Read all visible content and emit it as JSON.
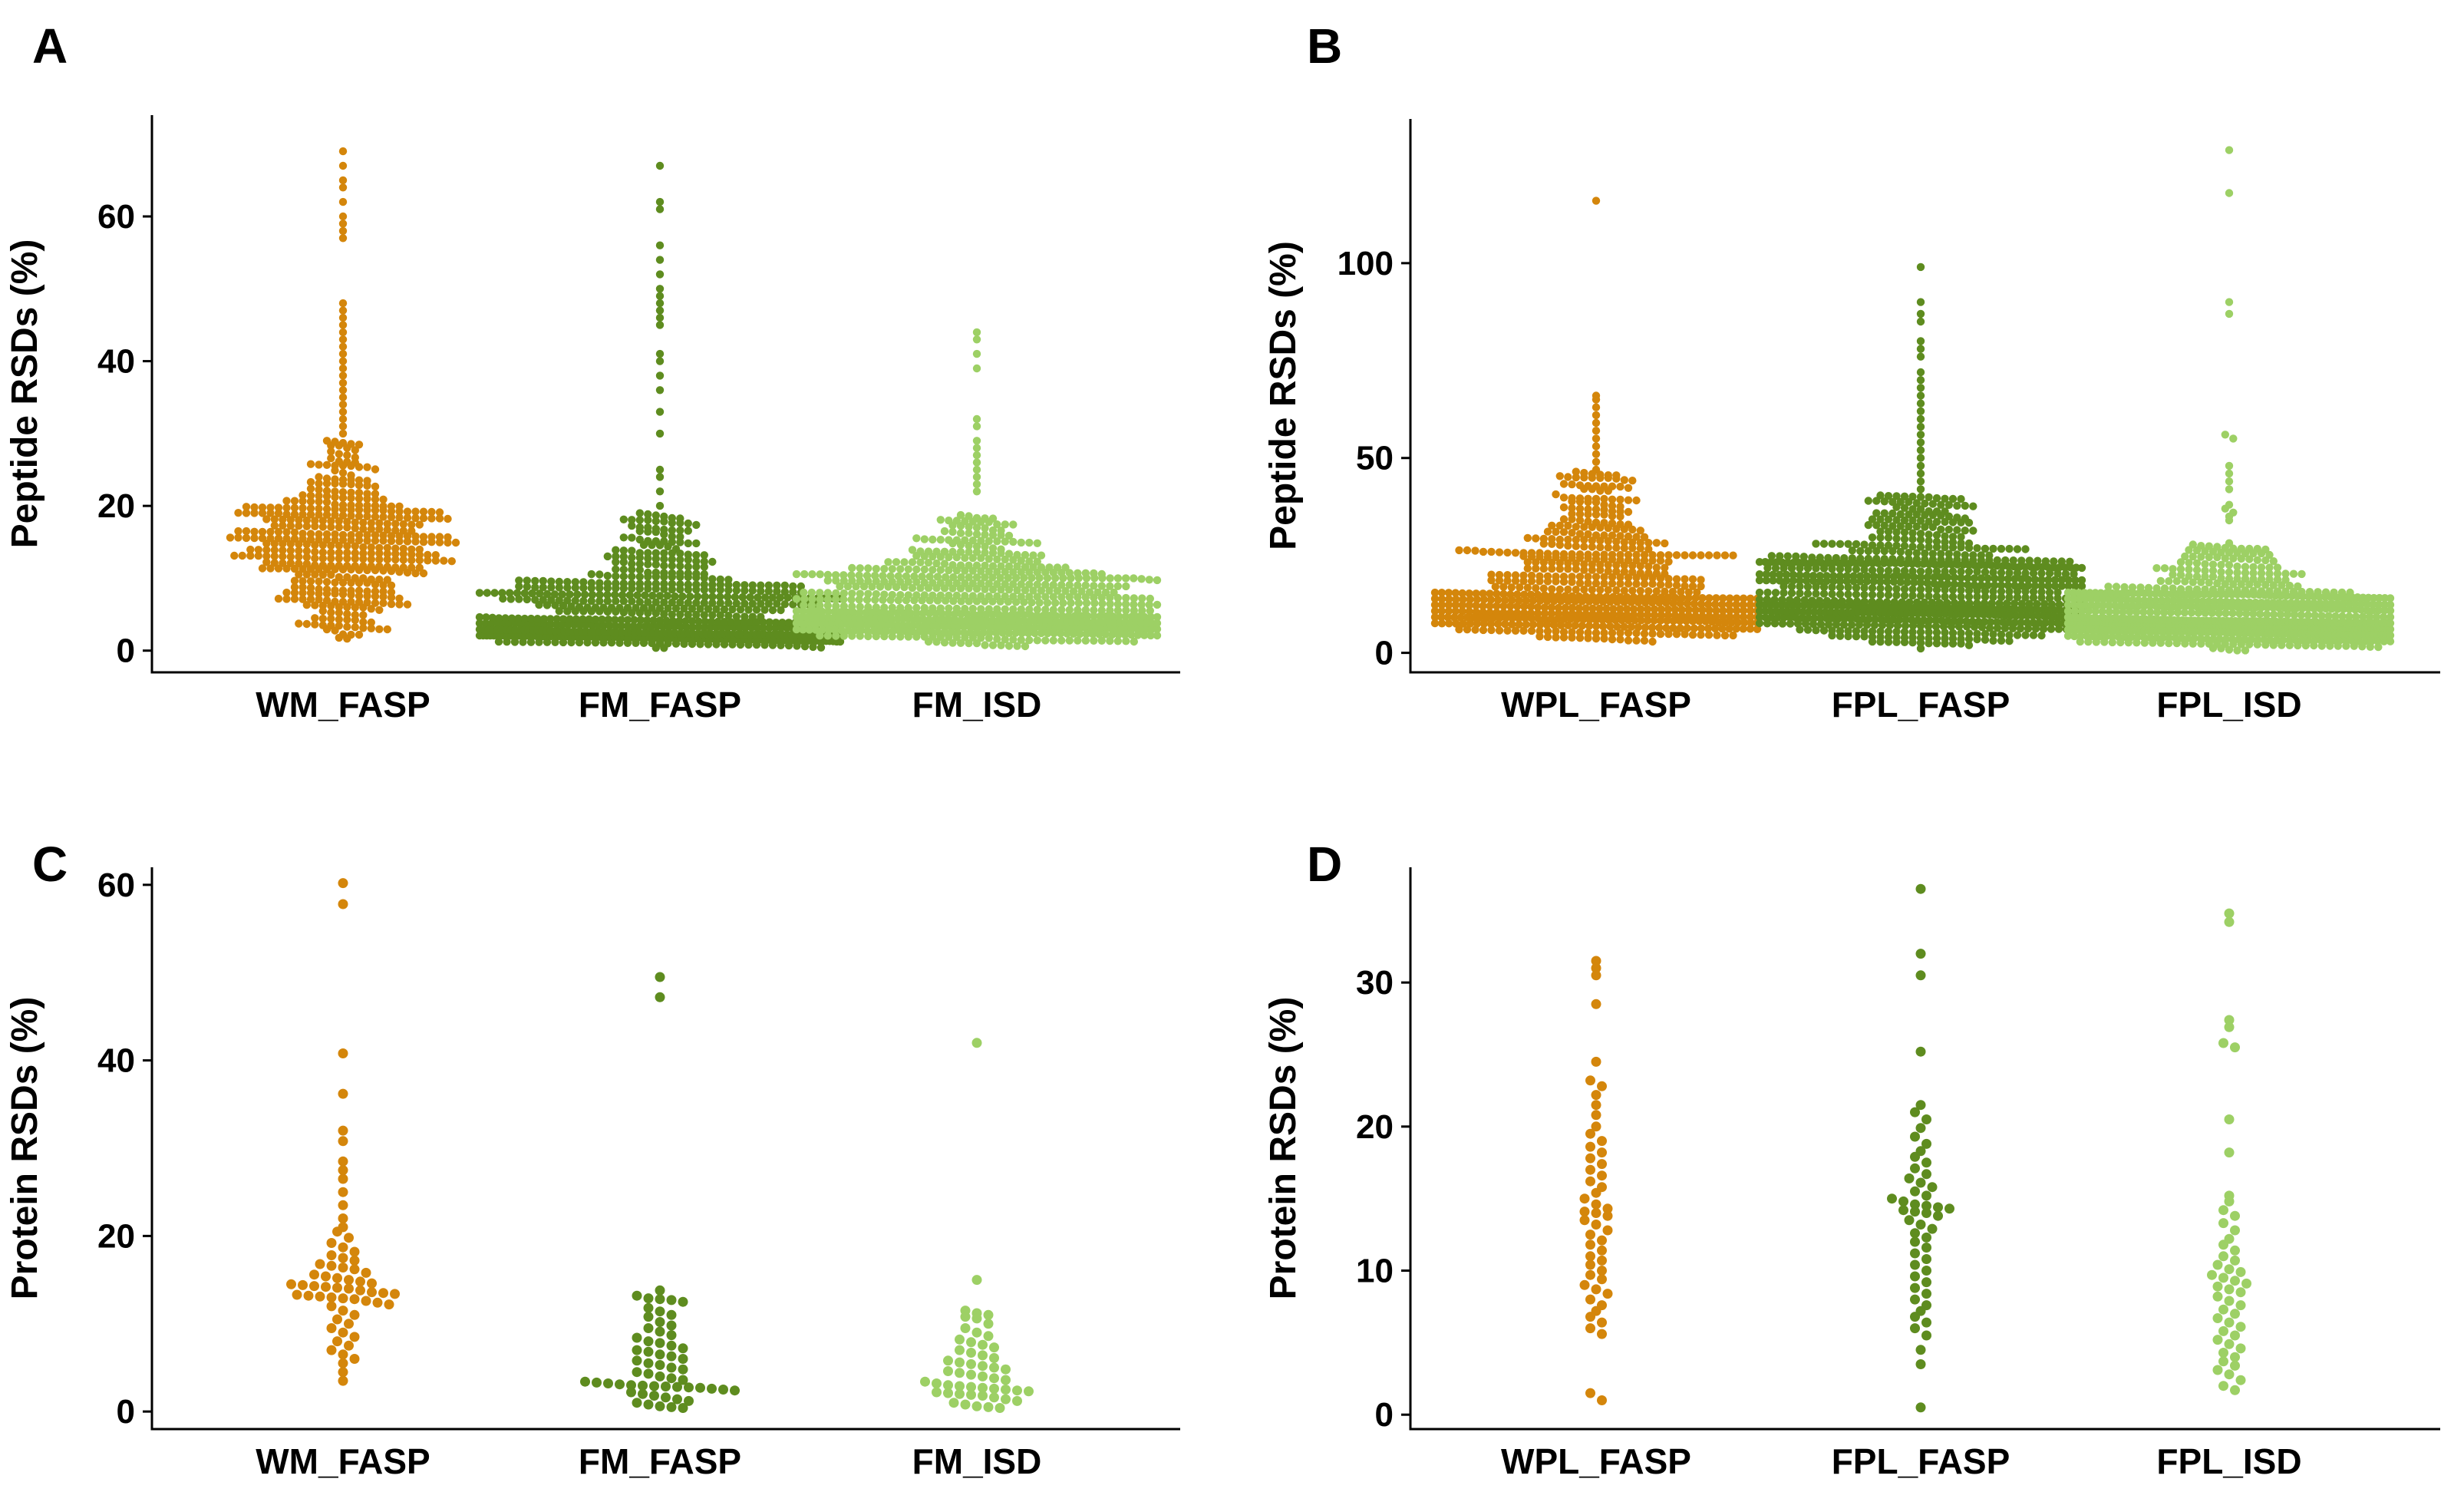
{
  "colors": {
    "orange": "#D4860B",
    "dark_green": "#5E8C1F",
    "light_green": "#9DD065"
  },
  "chart_data": [
    {
      "panel": "A",
      "type": "scatter",
      "subtype": "beeswarm",
      "ylabel": "Peptide RSDs (%)",
      "xlabel": "",
      "ylim": [
        -3,
        74
      ],
      "yticks": [
        0,
        20,
        40,
        60
      ],
      "categories": [
        "WM_FASP",
        "FM_FASP",
        "FM_ISD"
      ],
      "series": [
        {
          "name": "WM_FASP",
          "color": "#D4860B",
          "n": 480,
          "summary": {
            "min": 0.5,
            "q1": 11,
            "median": 14.5,
            "q3": 19,
            "max": 69
          },
          "outliers": [
            69,
            67,
            65,
            64,
            62,
            60,
            59,
            58,
            57,
            48,
            47,
            46,
            45,
            44,
            43,
            42,
            41,
            40,
            39,
            38,
            37,
            36,
            35,
            34,
            33,
            32,
            31,
            30,
            29,
            28,
            27,
            26
          ]
        },
        {
          "name": "FM_FASP",
          "color": "#5E8C1F",
          "n": 700,
          "summary": {
            "min": 0.3,
            "q1": 2.3,
            "median": 4.5,
            "q3": 9,
            "max": 67
          },
          "outliers": [
            67,
            62,
            61,
            56,
            54,
            52,
            50,
            49,
            48,
            47,
            46,
            45,
            41,
            40,
            38,
            36,
            33,
            30,
            25,
            24,
            22,
            20,
            19
          ]
        },
        {
          "name": "FM_ISD",
          "color": "#9DD065",
          "n": 720,
          "summary": {
            "min": 0.3,
            "q1": 3.5,
            "median": 6,
            "q3": 10,
            "max": 44
          },
          "outliers": [
            44,
            43,
            41,
            39,
            32,
            31,
            29,
            28,
            27,
            26,
            25,
            24,
            23,
            22
          ]
        }
      ]
    },
    {
      "panel": "B",
      "type": "scatter",
      "subtype": "beeswarm",
      "ylabel": "Peptide RSDs (%)",
      "xlabel": "",
      "ylim": [
        -5,
        137
      ],
      "yticks": [
        0,
        50,
        100
      ],
      "categories": [
        "WPL_FASP",
        "FPL_FASP",
        "FPL_ISD"
      ],
      "series": [
        {
          "name": "WPL_FASP",
          "color": "#D4860B",
          "n": 650,
          "summary": {
            "min": 2.5,
            "q1": 10,
            "median": 15,
            "q3": 25,
            "max": 116
          },
          "outliers": [
            116,
            66,
            65,
            63,
            61,
            59,
            57,
            55,
            53,
            51,
            49,
            47,
            45,
            43
          ]
        },
        {
          "name": "FPL_FASP",
          "color": "#5E8C1F",
          "n": 800,
          "summary": {
            "min": 1,
            "q1": 10,
            "median": 15,
            "q3": 23,
            "max": 99
          },
          "outliers": [
            99,
            90,
            87,
            85,
            80,
            78,
            76,
            72,
            70,
            68,
            66,
            64,
            62,
            60,
            58,
            56,
            54,
            52,
            50,
            48,
            46,
            44,
            42,
            40
          ]
        },
        {
          "name": "FPL_ISD",
          "color": "#9DD065",
          "n": 720,
          "summary": {
            "min": 0.5,
            "q1": 6,
            "median": 9,
            "q3": 15,
            "max": 129
          },
          "outliers": [
            129,
            118,
            90,
            87,
            56,
            55,
            48,
            46,
            44,
            42,
            38,
            37,
            36,
            35,
            34
          ]
        }
      ]
    },
    {
      "panel": "C",
      "type": "scatter",
      "subtype": "beeswarm",
      "ylabel": "Protein RSDs (%)",
      "xlabel": "",
      "ylim": [
        -2,
        62
      ],
      "yticks": [
        0,
        20,
        40,
        60
      ],
      "categories": [
        "WM_FASP",
        "FM_FASP",
        "FM_ISD"
      ],
      "series": [
        {
          "name": "WM_FASP",
          "color": "#D4860B",
          "values": [
            60.2,
            57.8,
            40.8,
            36.2,
            32,
            30.8,
            28.5,
            27.5,
            26.5,
            25,
            23.5,
            22,
            21,
            20.5,
            19.8,
            19.2,
            18.7,
            18.2,
            17.8,
            17.5,
            17.2,
            16.8,
            16.6,
            16.4,
            16.2,
            15.8,
            15.6,
            15.4,
            15.2,
            15,
            14.8,
            14.6,
            14.5,
            14.4,
            14.3,
            14.2,
            14.1,
            14,
            13.8,
            13.6,
            13.5,
            13.4,
            13.3,
            13.2,
            13.1,
            13,
            12.9,
            12.8,
            12.6,
            12.4,
            12.2,
            12,
            11.5,
            11,
            10.5,
            10,
            9.5,
            9,
            8.5,
            8,
            7.5,
            7,
            6.5,
            6,
            5.5,
            4.5,
            3.5
          ]
        },
        {
          "name": "FM_FASP",
          "color": "#5E8C1F",
          "values": [
            49.5,
            47.2,
            13.8,
            13.2,
            12.9,
            12.8,
            12.7,
            12.5,
            11.8,
            11.4,
            11,
            10.8,
            10.2,
            9.8,
            9.5,
            9.1,
            8.7,
            8.4,
            8,
            7.8,
            7.5,
            7.2,
            7,
            6.8,
            6.5,
            6.3,
            6,
            5.8,
            5.5,
            5.3,
            5,
            4.8,
            4.5,
            4.3,
            4,
            3.8,
            3.6,
            3.4,
            3.3,
            3.2,
            3.1,
            3,
            2.95,
            2.9,
            2.85,
            2.8,
            2.75,
            2.7,
            2.6,
            2.5,
            2.4,
            2.2,
            2,
            1.8,
            1.6,
            1.4,
            1.2,
            1,
            0.8,
            0.6,
            0.5,
            0.4
          ]
        },
        {
          "name": "FM_ISD",
          "color": "#9DD065",
          "values": [
            42,
            15,
            11.5,
            11.2,
            11,
            10.8,
            10.6,
            10,
            9.5,
            9,
            8.6,
            8.2,
            7.9,
            7.6,
            7.3,
            7,
            6.7,
            6.4,
            6.1,
            5.8,
            5.6,
            5.4,
            5.2,
            5,
            4.8,
            4.6,
            4.4,
            4.2,
            4,
            3.8,
            3.6,
            3.4,
            3.2,
            3,
            2.9,
            2.8,
            2.7,
            2.6,
            2.5,
            2.4,
            2.3,
            2.2,
            2.1,
            2,
            1.9,
            1.8,
            1.6,
            1.4,
            1.2,
            1,
            0.8,
            0.6,
            0.5,
            0.4
          ]
        }
      ]
    },
    {
      "panel": "D",
      "type": "scatter",
      "subtype": "beeswarm",
      "ylabel": "Protein RSDs (%)",
      "xlabel": "",
      "ylim": [
        -1,
        38
      ],
      "yticks": [
        0,
        10,
        20,
        30
      ],
      "categories": [
        "WPL_FASP",
        "FPL_FASP",
        "FPL_ISD"
      ],
      "series": [
        {
          "name": "WPL_FASP",
          "color": "#D4860B",
          "values": [
            31.5,
            31,
            30.5,
            28.5,
            24.5,
            23.2,
            22.8,
            22.2,
            21.5,
            20.8,
            20,
            19.5,
            19,
            18.6,
            18.2,
            17.8,
            17.4,
            17,
            16.6,
            16.2,
            15.8,
            15.4,
            15,
            14.6,
            14.3,
            14.1,
            14,
            13.8,
            13.5,
            13.2,
            12.8,
            12.5,
            12.1,
            11.8,
            11.4,
            11,
            10.7,
            10.4,
            10,
            9.7,
            9.4,
            9,
            8.7,
            8.4,
            8,
            7.6,
            7.2,
            6.8,
            6.4,
            6,
            5.6,
            1.5,
            1
          ]
        },
        {
          "name": "FPL_FASP",
          "color": "#5E8C1F",
          "values": [
            36.5,
            32,
            30.5,
            25.2,
            21.5,
            21,
            20.5,
            19.9,
            19.3,
            18.8,
            18.3,
            17.9,
            17.5,
            17.1,
            16.7,
            16.4,
            16.1,
            15.8,
            15.5,
            15.2,
            15,
            14.8,
            14.6,
            14.5,
            14.4,
            14.3,
            14.2,
            14.1,
            14,
            13.8,
            13.5,
            13.2,
            12.9,
            12.6,
            12.3,
            12,
            11.6,
            11.2,
            10.8,
            10.4,
            10,
            9.6,
            9.2,
            8.8,
            8.4,
            8,
            7.6,
            7.2,
            6.8,
            6.4,
            6,
            5.5,
            4.5,
            3.5,
            0.5
          ]
        },
        {
          "name": "FPL_ISD",
          "color": "#9DD065",
          "values": [
            34.8,
            34.2,
            27.4,
            26.9,
            25.8,
            25.5,
            20.5,
            18.2,
            15.2,
            14.8,
            14.2,
            13.8,
            13.3,
            12.8,
            12.2,
            11.8,
            11.4,
            11,
            10.7,
            10.4,
            10.1,
            9.9,
            9.7,
            9.5,
            9.3,
            9.1,
            8.9,
            8.7,
            8.5,
            8.2,
            7.9,
            7.6,
            7.3,
            7,
            6.7,
            6.4,
            6.1,
            5.8,
            5.5,
            5.2,
            4.9,
            4.6,
            4.3,
            4,
            3.7,
            3.4,
            3.1,
            2.8,
            2.4,
            2,
            1.7
          ]
        }
      ]
    }
  ]
}
